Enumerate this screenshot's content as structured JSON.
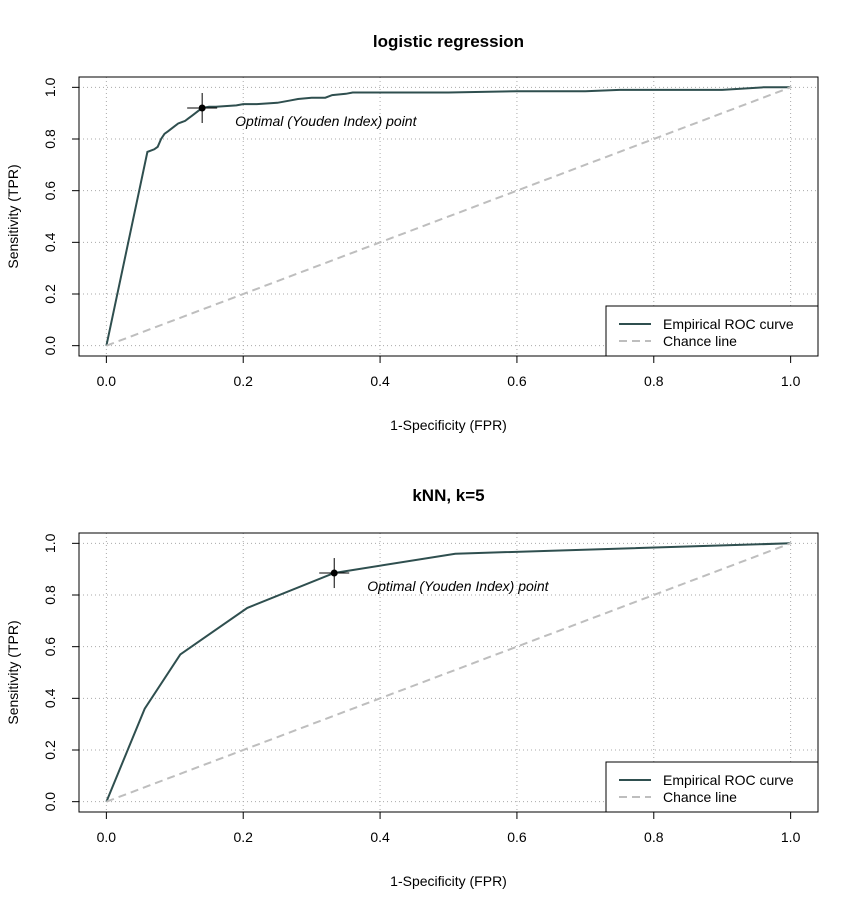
{
  "chart_data": [
    {
      "type": "line",
      "title": "logistic regression",
      "xlabel": "1-Specificity (FPR)",
      "ylabel": "Sensitivity (TPR)",
      "xlim": [
        0,
        1
      ],
      "ylim": [
        0,
        1
      ],
      "xticks": [
        "0.0",
        "0.2",
        "0.4",
        "0.6",
        "0.8",
        "1.0"
      ],
      "yticks": [
        "0.0",
        "0.2",
        "0.4",
        "0.6",
        "0.8",
        "1.0"
      ],
      "grid": true,
      "legend_position": "bottom-right",
      "series": [
        {
          "name": "Empirical ROC curve",
          "color": "#2f4f4f",
          "style": "solid",
          "x": [
            0.0,
            0.06,
            0.07,
            0.075,
            0.08,
            0.085,
            0.09,
            0.095,
            0.1,
            0.105,
            0.11,
            0.115,
            0.12,
            0.125,
            0.13,
            0.135,
            0.14,
            0.15,
            0.16,
            0.19,
            0.2,
            0.22,
            0.25,
            0.27,
            0.28,
            0.3,
            0.32,
            0.33,
            0.35,
            0.36,
            0.4,
            0.45,
            0.5,
            0.6,
            0.7,
            0.75,
            0.8,
            0.9,
            0.96,
            1.0
          ],
          "y": [
            0.0,
            0.75,
            0.76,
            0.77,
            0.8,
            0.82,
            0.83,
            0.84,
            0.85,
            0.86,
            0.865,
            0.87,
            0.88,
            0.89,
            0.9,
            0.91,
            0.92,
            0.925,
            0.925,
            0.93,
            0.935,
            0.935,
            0.94,
            0.95,
            0.955,
            0.96,
            0.96,
            0.97,
            0.975,
            0.98,
            0.98,
            0.98,
            0.98,
            0.985,
            0.985,
            0.99,
            0.99,
            0.99,
            1.0,
            1.0
          ]
        },
        {
          "name": "Chance line",
          "color": "#bebebe",
          "style": "dashed",
          "x": [
            0.0,
            1.0
          ],
          "y": [
            0.0,
            1.0
          ]
        }
      ],
      "optimal_point": {
        "x": 0.14,
        "y": 0.92,
        "label": "Optimal (Youden Index) point"
      }
    },
    {
      "type": "line",
      "title": "kNN, k=5",
      "xlabel": "1-Specificity (FPR)",
      "ylabel": "Sensitivity (TPR)",
      "xlim": [
        0,
        1
      ],
      "ylim": [
        0,
        1
      ],
      "xticks": [
        "0.0",
        "0.2",
        "0.4",
        "0.6",
        "0.8",
        "1.0"
      ],
      "yticks": [
        "0.0",
        "0.2",
        "0.4",
        "0.6",
        "0.8",
        "1.0"
      ],
      "grid": true,
      "legend_position": "bottom-right",
      "series": [
        {
          "name": "Empirical ROC curve",
          "color": "#2f4f4f",
          "style": "solid",
          "x": [
            0.0,
            0.056,
            0.108,
            0.206,
            0.333,
            0.51,
            1.0
          ],
          "y": [
            0.0,
            0.36,
            0.57,
            0.75,
            0.885,
            0.96,
            1.0
          ]
        },
        {
          "name": "Chance line",
          "color": "#bebebe",
          "style": "dashed",
          "x": [
            0.0,
            1.0
          ],
          "y": [
            0.0,
            1.0
          ]
        }
      ],
      "optimal_point": {
        "x": 0.333,
        "y": 0.885,
        "label": "Optimal (Youden Index) point"
      }
    }
  ]
}
